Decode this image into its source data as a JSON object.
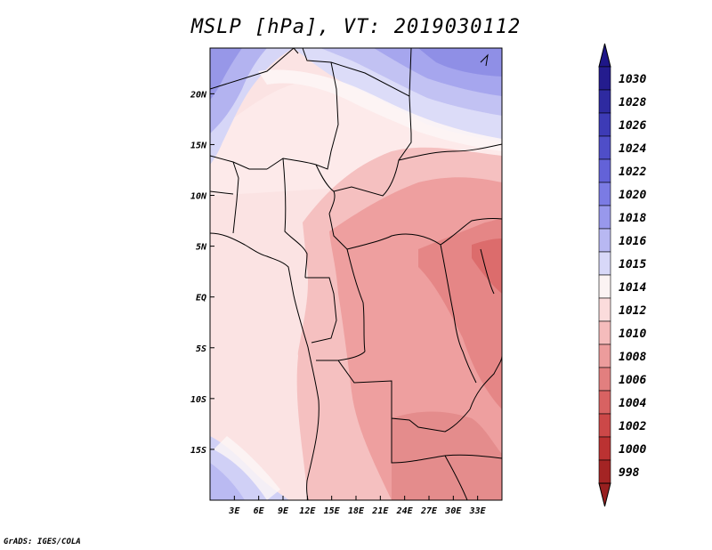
{
  "title": "MSLP [hPa], VT: 2019030112",
  "footer": "GrADS: IGES/COLA",
  "map": {
    "lon_range": [
      0,
      36
    ],
    "lat_range": [
      -20,
      24.5
    ],
    "y_tick_labels": [
      {
        "lat": 20,
        "label": "20N"
      },
      {
        "lat": 15,
        "label": "15N"
      },
      {
        "lat": 10,
        "label": "10N"
      },
      {
        "lat": 5,
        "label": "5N"
      },
      {
        "lat": 0,
        "label": "EQ"
      },
      {
        "lat": -5,
        "label": "5S"
      },
      {
        "lat": -10,
        "label": "10S"
      },
      {
        "lat": -15,
        "label": "15S"
      }
    ],
    "x_tick_labels": [
      {
        "lon": 3,
        "label": "3E"
      },
      {
        "lon": 6,
        "label": "6E"
      },
      {
        "lon": 9,
        "label": "9E"
      },
      {
        "lon": 12,
        "label": "12E"
      },
      {
        "lon": 15,
        "label": "15E"
      },
      {
        "lon": 18,
        "label": "18E"
      },
      {
        "lon": 21,
        "label": "21E"
      },
      {
        "lon": 24,
        "label": "24E"
      },
      {
        "lon": 27,
        "label": "27E"
      },
      {
        "lon": 30,
        "label": "30E"
      },
      {
        "lon": 33,
        "label": "33E"
      }
    ]
  },
  "colorbar": {
    "labels": [
      "1030",
      "1028",
      "1026",
      "1024",
      "1022",
      "1020",
      "1018",
      "1016",
      "1015",
      "1014",
      "1012",
      "1010",
      "1008",
      "1006",
      "1004",
      "1002",
      "1000",
      "998"
    ],
    "colors": [
      "#241c8e",
      "#2e2aa0",
      "#3d3bb6",
      "#4f4ec8",
      "#6362d8",
      "#7b7be4",
      "#9898ec",
      "#b8b8f2",
      "#d8d8f8",
      "#fbf3f3",
      "#fbdcdc",
      "#f5bcbc",
      "#ec9c9c",
      "#e27f7f",
      "#d86262",
      "#cc4848",
      "#bb3232",
      "#a42424"
    ],
    "top_color": "#1e1688",
    "bottom_color": "#982020"
  }
}
